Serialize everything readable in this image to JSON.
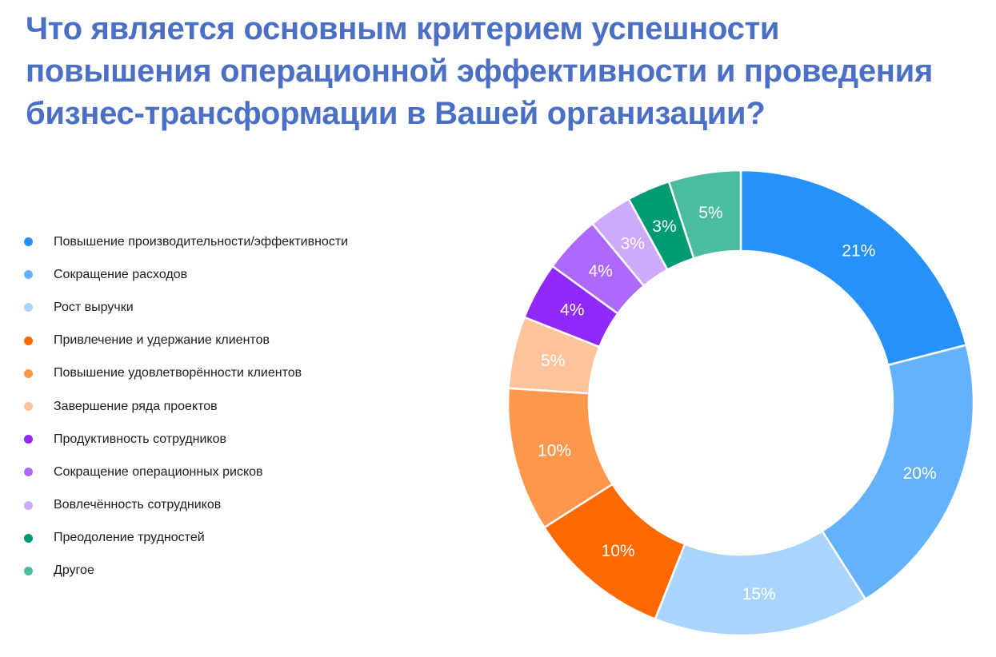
{
  "chart_data": {
    "type": "pie",
    "variant": "donut",
    "title": "Что является основным критерием успешности повышения операционной эффективности и проведения бизнес-трансформации в Вашей организации?",
    "legend_position": "left",
    "slices": [
      {
        "label": "Повышение производительности/эффективности",
        "value": 21,
        "value_label": "21%",
        "color": "#2791fb"
      },
      {
        "label": "Сокращение расходов",
        "value": 20,
        "value_label": "20%",
        "color": "#64b1fc"
      },
      {
        "label": "Рост выручки",
        "value": 15,
        "value_label": "15%",
        "color": "#a9d4fd"
      },
      {
        "label": "Привлечение и удержание клиентов",
        "value": 10,
        "value_label": "10%",
        "color": "#fd6900"
      },
      {
        "label": "Повышение удовлетворённости клиентов",
        "value": 10,
        "value_label": "10%",
        "color": "#fd974c"
      },
      {
        "label": "Завершение ряда проектов",
        "value": 5,
        "value_label": "5%",
        "color": "#fdc39a"
      },
      {
        "label": "Продуктивность сотрудников",
        "value": 4,
        "value_label": "4%",
        "color": "#8f2afb"
      },
      {
        "label": "Сокращение операционных рисков",
        "value": 4,
        "value_label": "4%",
        "color": "#ad69fb"
      },
      {
        "label": "Вовлечённость сотрудников",
        "value": 3,
        "value_label": "3%",
        "color": "#ceaafd"
      },
      {
        "label": "Преодоление трудностей",
        "value": 3,
        "value_label": "3%",
        "color": "#009b73"
      },
      {
        "label": "Другое",
        "value": 5,
        "value_label": "5%",
        "color": "#4cbc9f"
      }
    ]
  }
}
